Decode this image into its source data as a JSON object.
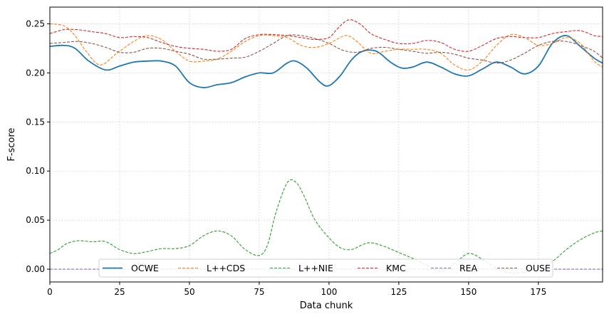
{
  "chart_data": {
    "type": "line",
    "title": "",
    "xlabel": "Data chunk",
    "ylabel": "F-score",
    "xlim": [
      0,
      198
    ],
    "ylim": [
      -0.013,
      0.267
    ],
    "xticks": [
      0,
      25,
      50,
      75,
      100,
      125,
      150,
      175
    ],
    "yticks": [
      0.0,
      0.05,
      0.1,
      0.15,
      0.2,
      0.25
    ],
    "xtick_labels": [
      "0",
      "25",
      "50",
      "75",
      "100",
      "125",
      "150",
      "175"
    ],
    "ytick_labels": [
      "0.00",
      "0.05",
      "0.10",
      "0.15",
      "0.20",
      "0.25"
    ],
    "grid": true,
    "legend_position": "bottom-center",
    "series": [
      {
        "name": "OCWE",
        "color": "#1f77b4",
        "dashed": false,
        "x": [
          0,
          5,
          9,
          14,
          20,
          25,
          30,
          35,
          40,
          45,
          50,
          55,
          60,
          65,
          70,
          75,
          80,
          85,
          88,
          92,
          97,
          100,
          104,
          108,
          112,
          117,
          122,
          126,
          130,
          135,
          140,
          145,
          150,
          155,
          160,
          165,
          170,
          175,
          180,
          185,
          190,
          195,
          198
        ],
        "y": [
          0.227,
          0.228,
          0.225,
          0.212,
          0.203,
          0.207,
          0.211,
          0.212,
          0.212,
          0.207,
          0.19,
          0.185,
          0.188,
          0.19,
          0.196,
          0.2,
          0.2,
          0.21,
          0.212,
          0.205,
          0.19,
          0.187,
          0.197,
          0.213,
          0.222,
          0.222,
          0.211,
          0.205,
          0.206,
          0.211,
          0.206,
          0.199,
          0.197,
          0.204,
          0.211,
          0.206,
          0.199,
          0.207,
          0.23,
          0.238,
          0.227,
          0.215,
          0.21
        ]
      },
      {
        "name": "L++CDS",
        "color": "#ff7f0e",
        "dashed": true,
        "x": [
          0,
          5,
          9,
          13,
          18,
          24,
          30,
          35,
          40,
          45,
          50,
          55,
          60,
          65,
          70,
          75,
          80,
          85,
          90,
          95,
          100,
          106,
          110,
          115,
          120,
          125,
          130,
          135,
          140,
          145,
          150,
          155,
          160,
          165,
          170,
          175,
          180,
          185,
          190,
          195,
          198
        ],
        "y": [
          0.25,
          0.248,
          0.238,
          0.222,
          0.208,
          0.22,
          0.232,
          0.238,
          0.234,
          0.222,
          0.212,
          0.212,
          0.214,
          0.222,
          0.232,
          0.238,
          0.238,
          0.236,
          0.228,
          0.226,
          0.23,
          0.238,
          0.232,
          0.22,
          0.222,
          0.224,
          0.224,
          0.224,
          0.22,
          0.208,
          0.203,
          0.212,
          0.228,
          0.239,
          0.236,
          0.228,
          0.23,
          0.236,
          0.23,
          0.212,
          0.206
        ]
      },
      {
        "name": "L++NIE",
        "color": "#2ca02c",
        "dashed": true,
        "x": [
          0,
          3,
          6,
          10,
          15,
          20,
          25,
          30,
          35,
          40,
          45,
          50,
          55,
          60,
          65,
          70,
          75,
          78,
          81,
          85,
          88,
          91,
          95,
          100,
          104,
          108,
          112,
          115,
          120,
          125,
          130,
          135,
          140,
          145,
          150,
          155,
          160,
          165,
          170,
          175,
          180,
          185,
          190,
          195,
          198
        ],
        "y": [
          0.016,
          0.02,
          0.026,
          0.029,
          0.028,
          0.028,
          0.02,
          0.016,
          0.018,
          0.021,
          0.021,
          0.024,
          0.034,
          0.039,
          0.034,
          0.02,
          0.014,
          0.025,
          0.058,
          0.088,
          0.089,
          0.075,
          0.05,
          0.032,
          0.022,
          0.02,
          0.025,
          0.027,
          0.023,
          0.017,
          0.011,
          0.004,
          -0.002,
          0.006,
          0.016,
          0.01,
          0.001,
          -0.004,
          -0.003,
          0.002,
          0.008,
          0.02,
          0.03,
          0.037,
          0.039
        ]
      },
      {
        "name": "KMC",
        "color": "#d62728",
        "dashed": true,
        "x": [
          0,
          5,
          10,
          15,
          20,
          25,
          30,
          35,
          40,
          45,
          50,
          55,
          60,
          65,
          70,
          75,
          80,
          85,
          90,
          95,
          100,
          103,
          107,
          111,
          115,
          120,
          125,
          130,
          135,
          140,
          145,
          150,
          155,
          160,
          165,
          170,
          175,
          180,
          185,
          190,
          195,
          198
        ],
        "y": [
          0.24,
          0.244,
          0.244,
          0.242,
          0.24,
          0.236,
          0.237,
          0.236,
          0.231,
          0.227,
          0.225,
          0.224,
          0.222,
          0.224,
          0.235,
          0.239,
          0.239,
          0.238,
          0.236,
          0.234,
          0.236,
          0.245,
          0.254,
          0.25,
          0.24,
          0.234,
          0.23,
          0.23,
          0.233,
          0.231,
          0.224,
          0.222,
          0.228,
          0.235,
          0.237,
          0.236,
          0.236,
          0.24,
          0.242,
          0.243,
          0.238,
          0.237
        ]
      },
      {
        "name": "REA",
        "color": "#9467bd",
        "dashed": true,
        "x": [
          0,
          198
        ],
        "y": [
          0.0,
          0.0
        ]
      },
      {
        "name": "OUSE",
        "color": "#8c564b",
        "dashed": true,
        "x": [
          0,
          5,
          10,
          15,
          20,
          25,
          30,
          35,
          40,
          45,
          50,
          55,
          60,
          65,
          70,
          75,
          80,
          85,
          90,
          95,
          100,
          105,
          110,
          115,
          120,
          125,
          130,
          135,
          140,
          145,
          150,
          155,
          160,
          165,
          170,
          175,
          180,
          185,
          190,
          195,
          198
        ],
        "y": [
          0.23,
          0.231,
          0.232,
          0.23,
          0.226,
          0.221,
          0.221,
          0.225,
          0.225,
          0.222,
          0.219,
          0.214,
          0.214,
          0.215,
          0.216,
          0.222,
          0.23,
          0.238,
          0.238,
          0.235,
          0.23,
          0.223,
          0.221,
          0.225,
          0.226,
          0.224,
          0.222,
          0.22,
          0.221,
          0.219,
          0.215,
          0.213,
          0.21,
          0.213,
          0.22,
          0.228,
          0.232,
          0.232,
          0.228,
          0.222,
          0.215
        ]
      }
    ]
  }
}
